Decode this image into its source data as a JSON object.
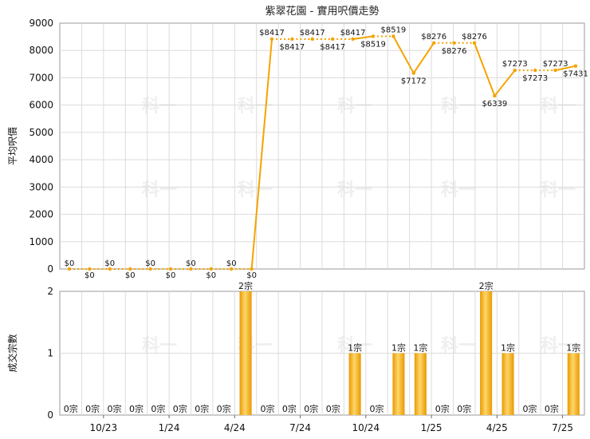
{
  "chart_data": [
    {
      "type": "line",
      "title": "紫翠花園 - 實用呎價走勢",
      "ylabel": "平均呎價",
      "ylim": [
        0,
        9000
      ],
      "yticks": [
        0,
        1000,
        2000,
        3000,
        4000,
        5000,
        6000,
        7000,
        8000,
        9000
      ],
      "x_tick_labels": [
        "10/23",
        "1/24",
        "4/24",
        "7/24",
        "10/24",
        "1/25",
        "4/25",
        "7/25"
      ],
      "color": "#f5a300",
      "series": [
        {
          "values": [
            0,
            0,
            0,
            0,
            0,
            0,
            0,
            0,
            0,
            0,
            8417,
            8417,
            8417,
            8417,
            8417,
            8519,
            8519,
            7172,
            8276,
            8276,
            8276,
            6339,
            7273,
            7273,
            7273,
            7431
          ],
          "labels": [
            "$0",
            "$0",
            "$0",
            "$0",
            "$0",
            "$0",
            "$0",
            "$0",
            "$0",
            "$0",
            "$8417",
            "$8417",
            "$8417",
            "$8417",
            "$8417",
            "$8519",
            "$8519",
            "$7172",
            "$8276",
            "$8276",
            "$8276",
            "$6339",
            "$7273",
            "$7273",
            "$7273",
            "$7431"
          ]
        }
      ]
    },
    {
      "type": "bar",
      "ylabel": "成交宗數",
      "ylim": [
        0,
        2
      ],
      "yticks": [
        0,
        1,
        2
      ],
      "x_tick_labels": [
        "10/23",
        "1/24",
        "4/24",
        "7/24",
        "10/24",
        "1/25",
        "4/25",
        "7/25"
      ],
      "color": "#f0a800",
      "values": [
        0,
        0,
        0,
        0,
        0,
        0,
        0,
        0,
        2,
        0,
        0,
        0,
        0,
        1,
        0,
        1,
        1,
        0,
        0,
        2,
        1,
        0,
        0,
        1
      ],
      "labels": [
        "0宗",
        "0宗",
        "0宗",
        "0宗",
        "0宗",
        "0宗",
        "0宗",
        "0宗",
        "2宗",
        "0宗",
        "0宗",
        "0宗",
        "0宗",
        "1宗",
        "0宗",
        "1宗",
        "1宗",
        "0宗",
        "0宗",
        "2宗",
        "1宗",
        "0宗",
        "0宗",
        "1宗"
      ]
    }
  ],
  "watermark": "科一"
}
